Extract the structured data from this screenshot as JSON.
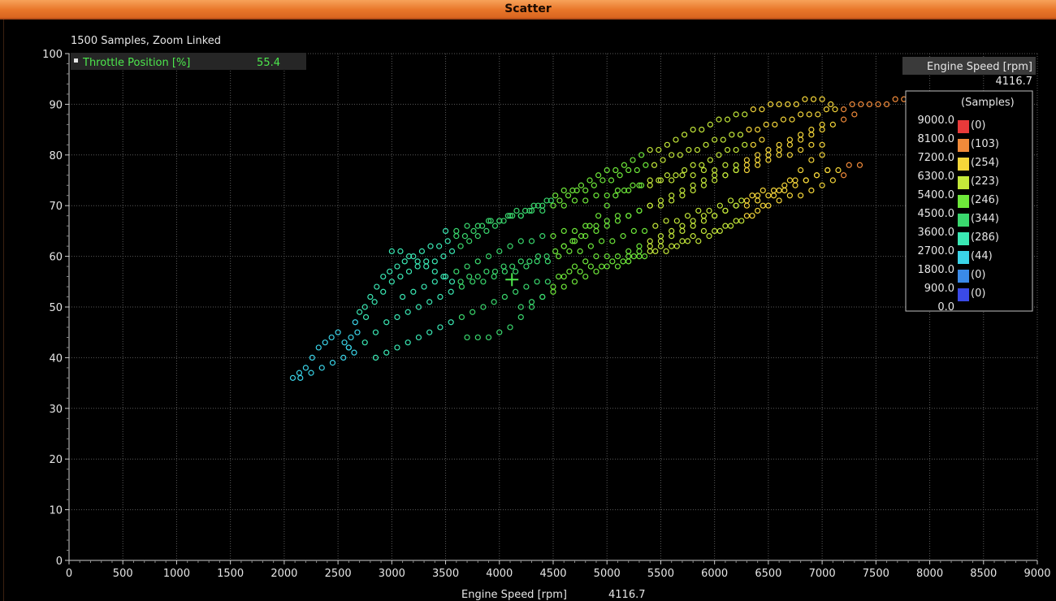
{
  "window": {
    "title": "Scatter"
  },
  "chart_data": {
    "type": "scatter",
    "title": "",
    "info": "1500 Samples, Zoom Linked",
    "xlabel": "Engine Speed [rpm]",
    "ylabel": "",
    "xlim": [
      0,
      9000
    ],
    "ylim": [
      0,
      100
    ],
    "x_ticks": [
      "0",
      "500",
      "1000",
      "1500",
      "2000",
      "2500",
      "3000",
      "3500",
      "4000",
      "4500",
      "5000",
      "5500",
      "6000",
      "6500",
      "7000",
      "7500",
      "8000",
      "8500",
      "9000"
    ],
    "y_ticks": [
      "0",
      "10",
      "20",
      "30",
      "40",
      "50",
      "60",
      "70",
      "80",
      "90",
      "100"
    ],
    "grid": true,
    "cursor": {
      "x": 4116.7,
      "y": 55.4,
      "x_readout": "4116.7",
      "y_readout": "55.4"
    },
    "y_channel": {
      "name": "Throttle Position [%]",
      "color": "#4de84d"
    },
    "color_channel": {
      "name": "Engine Speed [rpm]",
      "value": "4116.7"
    },
    "legend": {
      "position": "right",
      "title": "(Samples)",
      "bins": [
        {
          "label": "9000.0",
          "count": "(0)",
          "color": "#e83a3a"
        },
        {
          "label": "8100.0",
          "count": "(103)",
          "color": "#f08a3a"
        },
        {
          "label": "7200.0",
          "count": "(254)",
          "color": "#f5d63a"
        },
        {
          "label": "6300.0",
          "count": "(223)",
          "color": "#c4e83a"
        },
        {
          "label": "5400.0",
          "count": "(246)",
          "color": "#6ee83a"
        },
        {
          "label": "4500.0",
          "count": "(344)",
          "color": "#3ad86e"
        },
        {
          "label": "3600.0",
          "count": "(286)",
          "color": "#3ae8b4"
        },
        {
          "label": "2700.0",
          "count": "(44)",
          "color": "#3ad4e8"
        },
        {
          "label": "1800.0",
          "count": "(0)",
          "color": "#3a8ae8"
        },
        {
          "label": "900.0",
          "count": "(0)",
          "color": "#3a4ae8"
        },
        {
          "label": "0.0",
          "count": "",
          "color": ""
        }
      ]
    },
    "series": [
      {
        "x": [
          2080,
          2140,
          2200,
          2260,
          2320,
          2380,
          2440,
          2500,
          2560,
          2600,
          2620,
          2660,
          2700,
          2750,
          2800,
          2860,
          2920,
          2980,
          3050,
          3120,
          3200,
          3280,
          3360,
          3440,
          3520,
          3600,
          3680,
          3760,
          3840,
          3920,
          4000,
          4080,
          4160,
          4240,
          4320,
          4400,
          4480,
          4560,
          4640,
          4720,
          4800,
          4880,
          4960,
          5040,
          5120,
          5200,
          5280,
          5360,
          5440,
          5520,
          5600,
          5680,
          5760,
          5840,
          5920,
          6000,
          6080,
          6160,
          6240,
          6320,
          6400,
          6480,
          6560,
          6640,
          6720,
          6800,
          6880,
          6960,
          7040,
          7120,
          7200,
          7280,
          7360,
          7440,
          7520,
          7600,
          7680,
          7760,
          7850
        ],
        "y": [
          36,
          37,
          38,
          40,
          42,
          43,
          44,
          45,
          43,
          42,
          44,
          47,
          49,
          50,
          52,
          54,
          56,
          57,
          58,
          59,
          60,
          61,
          62,
          62,
          63,
          64,
          64,
          65,
          66,
          67,
          67,
          68,
          69,
          69,
          70,
          70,
          71,
          71,
          72,
          73,
          73,
          74,
          75,
          75,
          76,
          77,
          77,
          78,
          78,
          79,
          80,
          80,
          81,
          81,
          82,
          83,
          83,
          84,
          84,
          85,
          85,
          86,
          86,
          87,
          87,
          88,
          88,
          88,
          89,
          89,
          89,
          90,
          90,
          90,
          90,
          90,
          91,
          91,
          91
        ]
      },
      {
        "x": [
          2150,
          2250,
          2350,
          2450,
          2550,
          2650,
          2750,
          2850,
          2950,
          3050,
          3150,
          3250,
          3350,
          3450,
          3550,
          3650,
          3750,
          3850,
          3950,
          4050,
          4150,
          4250,
          4350,
          4450,
          4550,
          4650,
          4750,
          4850,
          4950,
          5050,
          5150,
          5250,
          5350,
          5450,
          5550,
          5650,
          5750,
          5850,
          5950,
          6050,
          6150,
          6250,
          6350,
          6450,
          6550,
          6650,
          6750,
          6850,
          6950,
          7050,
          7150,
          7250,
          7350
        ],
        "y": [
          36,
          37,
          38,
          39,
          40,
          41,
          43,
          45,
          47,
          48,
          49,
          50,
          51,
          52,
          53,
          54,
          55,
          55,
          56,
          57,
          57,
          58,
          59,
          59,
          60,
          61,
          61,
          62,
          63,
          63,
          64,
          65,
          65,
          66,
          67,
          67,
          68,
          69,
          69,
          70,
          71,
          71,
          72,
          73,
          73,
          74,
          75,
          75,
          76,
          77,
          77,
          78,
          78
        ]
      },
      {
        "x": [
          2600,
          2680,
          2760,
          2840,
          2920,
          3000,
          3080,
          3160,
          3240,
          3320,
          3400,
          3480,
          3560,
          3640,
          3720,
          3800,
          3880,
          3960,
          4040,
          4120,
          4200,
          4280,
          4360,
          4440,
          4520,
          4600,
          4680,
          4760,
          4840,
          4920,
          5000,
          5080,
          5160,
          5240,
          5320,
          5400,
          5480,
          5560,
          5640,
          5720,
          5800,
          5880,
          5960,
          6040,
          6120,
          6200,
          6280,
          6360,
          6440,
          6520,
          6600,
          6680,
          6760,
          6840,
          6920,
          7000,
          7080
        ],
        "y": [
          42,
          45,
          48,
          51,
          53,
          55,
          56,
          57,
          58,
          59,
          59,
          60,
          61,
          62,
          63,
          64,
          65,
          66,
          67,
          68,
          68,
          69,
          70,
          71,
          72,
          73,
          73,
          74,
          75,
          76,
          77,
          77,
          78,
          79,
          80,
          81,
          81,
          82,
          83,
          84,
          85,
          85,
          86,
          87,
          87,
          88,
          88,
          89,
          89,
          90,
          90,
          90,
          90,
          91,
          91,
          91,
          90
        ]
      },
      {
        "x": [
          2850,
          2950,
          3050,
          3150,
          3250,
          3350,
          3450,
          3550,
          3650,
          3750,
          3850,
          3950,
          4050,
          4150,
          4250,
          4350,
          4450,
          4550,
          4650,
          4750,
          4850,
          4950,
          5050,
          5150,
          5250,
          5350,
          5450,
          5550,
          5650,
          5750,
          5850,
          5950,
          6050,
          6150,
          6250,
          6350,
          6450,
          6550,
          6650,
          6750,
          6850,
          6950,
          7050
        ],
        "y": [
          40,
          41,
          42,
          43,
          44,
          45,
          46,
          47,
          48,
          49,
          50,
          51,
          52,
          53,
          54,
          55,
          55,
          56,
          57,
          57,
          58,
          58,
          59,
          59,
          60,
          60,
          61,
          61,
          62,
          63,
          63,
          64,
          65,
          66,
          67,
          68,
          70,
          72,
          73,
          74,
          75,
          76,
          77
        ]
      },
      {
        "x": [
          3100,
          3200,
          3300,
          3400,
          3500,
          3600,
          3700,
          3800,
          3900,
          4000,
          4100,
          4200,
          4300,
          4400,
          4500,
          4600,
          4700,
          4800,
          4900,
          5000,
          5100,
          5200,
          5300,
          5400,
          5500,
          5600,
          5700,
          5800,
          5900,
          6000,
          6100,
          6200,
          6300,
          6400,
          6500,
          6600,
          6700,
          6800,
          6900,
          7000
        ],
        "y": [
          52,
          53,
          54,
          55,
          56,
          57,
          58,
          59,
          60,
          61,
          62,
          63,
          63,
          64,
          64,
          65,
          65,
          66,
          66,
          67,
          68,
          68,
          69,
          70,
          70,
          71,
          72,
          73,
          74,
          75,
          76,
          77,
          77,
          78,
          79,
          80,
          80,
          81,
          82,
          82
        ]
      },
      {
        "x": [
          3000,
          3080,
          3160,
          3240,
          3320,
          3400,
          3480,
          3560,
          3640,
          3720,
          3800,
          3880,
          3960,
          4040,
          4120,
          4200,
          4280,
          4360,
          4440,
          4520,
          4600,
          4680,
          4760,
          4840,
          4920,
          5000,
          5080,
          5160,
          5240,
          5320,
          5400,
          5480,
          5560,
          5640,
          5720,
          5800,
          5880,
          5960,
          6040,
          6120,
          6200,
          6280,
          6360,
          6440
        ],
        "y": [
          61,
          61,
          60,
          59,
          58,
          57,
          56,
          55,
          55,
          56,
          56,
          57,
          57,
          58,
          58,
          59,
          59,
          60,
          60,
          61,
          62,
          63,
          64,
          66,
          68,
          70,
          72,
          73,
          74,
          74,
          75,
          75,
          76,
          76,
          77,
          78,
          78,
          79,
          80,
          81,
          81,
          82,
          82,
          83
        ]
      },
      {
        "x": [
          3500,
          3600,
          3700,
          3800,
          3900,
          4000,
          4100,
          4200,
          4300,
          4400,
          4500,
          4600,
          4700,
          4800,
          4900,
          5000,
          5100,
          5200,
          5300,
          5400,
          5500,
          5600,
          5700,
          5800,
          5900,
          6000,
          6100,
          6200,
          6300,
          6400,
          6500,
          6600,
          6700,
          6800,
          6900,
          7000
        ],
        "y": [
          65,
          65,
          66,
          66,
          67,
          67,
          68,
          68,
          69,
          69,
          70,
          70,
          71,
          71,
          72,
          72,
          73,
          73,
          74,
          74,
          75,
          75,
          76,
          76,
          77,
          77,
          78,
          78,
          79,
          80,
          81,
          82,
          83,
          84,
          85,
          86
        ]
      },
      {
        "x": [
          3700,
          3800,
          3900,
          4000,
          4100,
          4200,
          4300,
          4400,
          4500,
          4600,
          4700,
          4800,
          4900,
          5000,
          5100,
          5200,
          5300,
          5400,
          5500,
          5600,
          5700,
          5800,
          5900,
          6000,
          6100,
          6200,
          6300,
          6400
        ],
        "y": [
          44,
          44,
          44,
          45,
          46,
          48,
          50,
          52,
          54,
          56,
          58,
          59,
          60,
          60,
          60,
          61,
          62,
          63,
          64,
          65,
          66,
          67,
          68,
          68,
          69,
          70,
          71,
          72
        ]
      },
      {
        "x": [
          4200,
          4300,
          4400,
          4500,
          4600,
          4700,
          4800,
          4900,
          5000,
          5100,
          5200,
          5300,
          5400,
          5500,
          5600,
          5700,
          5800,
          5900,
          6000,
          6100,
          6200,
          6300,
          6400,
          6500,
          6600,
          6700,
          6800,
          6900,
          7000,
          7100,
          7200
        ],
        "y": [
          50,
          51,
          52,
          53,
          54,
          55,
          56,
          57,
          58,
          58,
          59,
          60,
          61,
          62,
          62,
          63,
          64,
          65,
          65,
          66,
          67,
          68,
          69,
          70,
          71,
          72,
          72,
          73,
          74,
          75,
          76
        ]
      },
      {
        "x": [
          4600,
          4700,
          4800,
          4900,
          5000,
          5100,
          5200,
          5300,
          5400,
          5500,
          5600,
          5700,
          5800,
          5900,
          6000,
          6100,
          6200,
          6300,
          6400,
          6500,
          6600,
          6700,
          6800,
          6900,
          7000,
          7100,
          7200,
          7300
        ],
        "y": [
          62,
          63,
          64,
          65,
          66,
          67,
          68,
          69,
          70,
          71,
          72,
          73,
          74,
          75,
          76,
          76,
          77,
          78,
          79,
          80,
          81,
          82,
          83,
          84,
          85,
          86,
          87,
          88
        ]
      },
      {
        "x": [
          5200,
          5300,
          5400,
          5500,
          5600,
          5700,
          5800,
          5900,
          6000,
          6100,
          6200,
          6300,
          6400,
          6500,
          6600,
          6700,
          6800,
          6900,
          7000
        ],
        "y": [
          60,
          61,
          62,
          63,
          64,
          65,
          66,
          67,
          68,
          69,
          70,
          70,
          71,
          72,
          73,
          75,
          77,
          79,
          80
        ]
      }
    ]
  }
}
